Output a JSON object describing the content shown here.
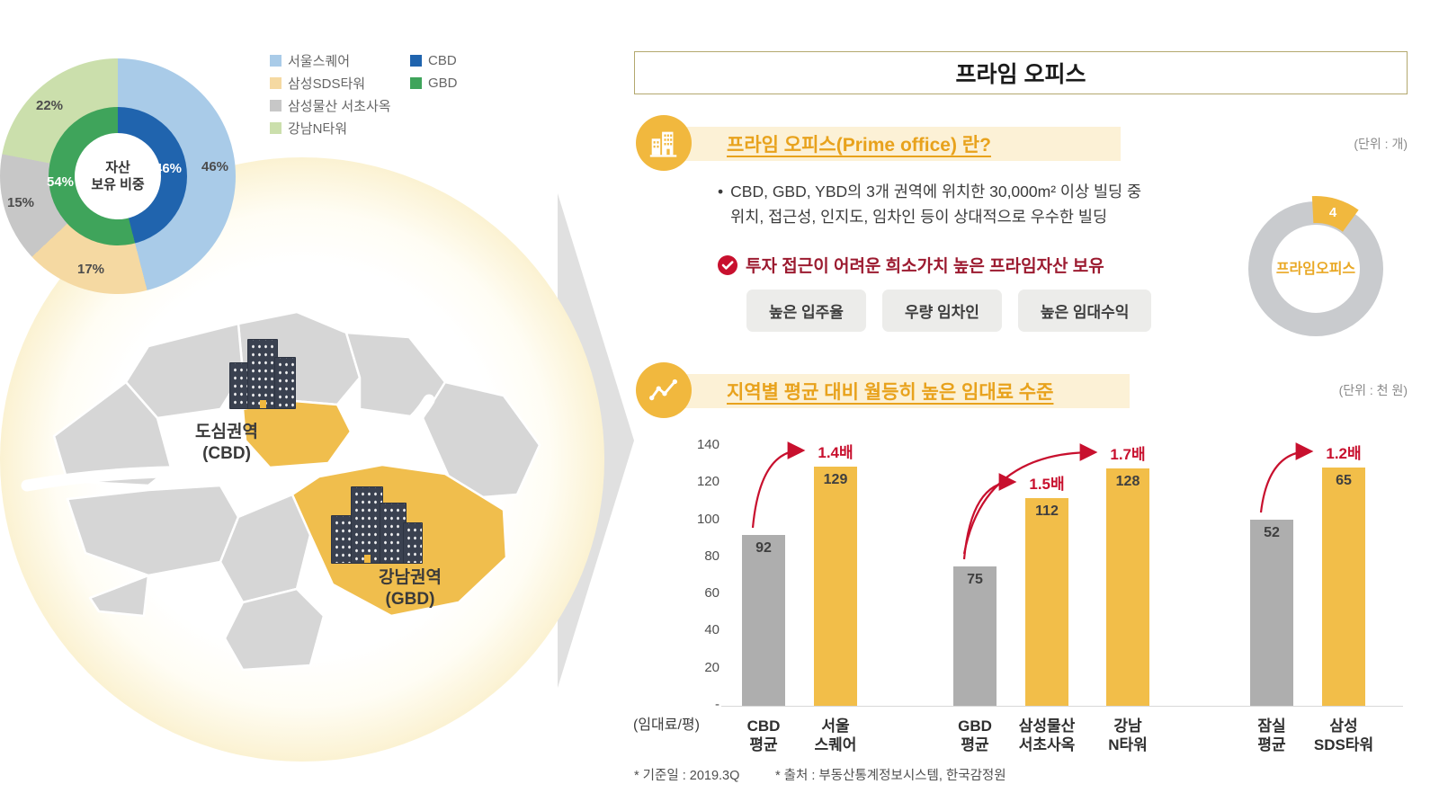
{
  "colors": {
    "accent_yellow": "#F1B83E",
    "pale_band": "#FCF1D6",
    "heading_orange": "#E8A21C",
    "red_accent": "#C8102E",
    "dark_red_text": "#9C1B30",
    "bar_gray": "#AEAEAE",
    "bar_yellow": "#F2BE49",
    "donut_outer_colors": [
      "#A9CBE8",
      "#F5D9A2",
      "#C7C7C7",
      "#CBDFAC"
    ],
    "donut_inner_colors": [
      "#2064AE",
      "#3FA45B"
    ],
    "map_gray": "#D6D6D6",
    "map_yellow": "#F0BE4D"
  },
  "asset_donut": {
    "center_label": "자산\n보유 비중",
    "outer_labels": {
      "seoul_square": "46%",
      "sds_tower": "17%",
      "seocho": "15%",
      "ntower": "22%"
    },
    "inner_labels": {
      "cbd": "46%",
      "gbd": "54%"
    },
    "legend": {
      "assets": [
        {
          "label": "서울스퀘어"
        },
        {
          "label": "삼성SDS타워"
        },
        {
          "label": "삼성물산 서초사옥"
        },
        {
          "label": "강남N타워"
        }
      ],
      "regions": [
        {
          "label": "CBD"
        },
        {
          "label": "GBD"
        }
      ]
    }
  },
  "map": {
    "cbd_label": "도심권역\n(CBD)",
    "gbd_label": "강남권역\n(GBD)"
  },
  "panel": {
    "title": "프라임 오피스",
    "section1": {
      "heading": "프라임 오피스(Prime office) 란?",
      "unit": "(단위 : 개)",
      "bullet_marker": "•",
      "bullet": "CBD, GBD, YBD의 3개 권역에 위치한 30,000m² 이상 빌딩 중\n위치, 접근성, 인지도, 임차인 등이 상대적으로 우수한 빌딩",
      "check_text": "투자 접근이 어려운 희소가치 높은 프라임자산 보유",
      "pills": [
        {
          "label": "높은 입주율"
        },
        {
          "label": "우량 임차인"
        },
        {
          "label": "높은 임대수익"
        }
      ],
      "donut": {
        "value": "4",
        "center_label": "프라임오피스"
      }
    },
    "section2": {
      "heading": "지역별 평균 대비 월등히 높은 임대료 수준",
      "unit": "(단위 : 천 원)",
      "ylabel": "(임대료/평)",
      "zero_label": "-"
    },
    "footnotes": [
      {
        "text": "* 기준일 : 2019.3Q"
      },
      {
        "text": "* 출처 : 부동산통계정보시스템, 한국감정원"
      }
    ]
  },
  "chart_data": [
    {
      "type": "pie",
      "subtype": "double-donut",
      "title": "자산 보유 비중",
      "rings": [
        {
          "name": "자산별 비중",
          "labels": [
            "서울스퀘어",
            "삼성SDS타워",
            "삼성물산 서초사옥",
            "강남N타워"
          ],
          "values": [
            46,
            17,
            15,
            22
          ],
          "unit": "%"
        },
        {
          "name": "권역별 비중",
          "labels": [
            "CBD",
            "GBD"
          ],
          "values": [
            46,
            54
          ],
          "unit": "%"
        }
      ]
    },
    {
      "type": "pie",
      "subtype": "donut",
      "title": "프라임오피스",
      "labels": [
        "프라임오피스"
      ],
      "values": [
        4
      ],
      "unit": "개"
    },
    {
      "type": "bar",
      "title": "지역별 평균 대비 월등히 높은 임대료 수준",
      "unit": "천 원",
      "ylabel": "(임대료/평)",
      "ylim": [
        0,
        140
      ],
      "yticks": [
        20,
        40,
        60,
        80,
        100,
        120,
        140
      ],
      "grid": false,
      "groups": [
        {
          "bars": [
            {
              "label": "CBD\n평균",
              "value": 92,
              "style": "gray"
            },
            {
              "label": "서울\n스퀘어",
              "value": 129,
              "style": "yellow",
              "multiplier": "1.4배"
            }
          ]
        },
        {
          "bars": [
            {
              "label": "GBD\n평균",
              "value": 75,
              "style": "gray"
            },
            {
              "label": "삼성물산\n서초사옥",
              "value": 112,
              "style": "yellow",
              "multiplier": "1.5배"
            },
            {
              "label": "강남\nN타워",
              "value": 128,
              "style": "yellow",
              "multiplier": "1.7배"
            }
          ]
        },
        {
          "bars": [
            {
              "label": "잠실\n평균",
              "value": 52,
              "style": "gray"
            },
            {
              "label": "삼성\nSDS타워",
              "value": 65,
              "style": "yellow",
              "multiplier": "1.2배"
            }
          ]
        }
      ]
    }
  ]
}
